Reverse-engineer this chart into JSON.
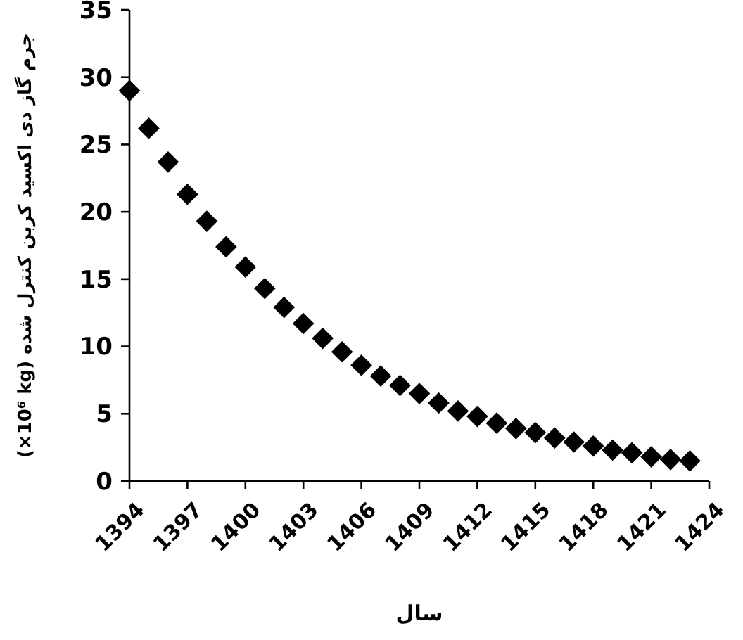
{
  "chart_data": {
    "type": "scatter",
    "xlabel": "سال",
    "ylabel": "جرم گاز دی اکسید کربن کنترل شده (×10⁶ kg)",
    "x": [
      1394,
      1395,
      1396,
      1397,
      1398,
      1399,
      1400,
      1401,
      1402,
      1403,
      1404,
      1405,
      1406,
      1407,
      1408,
      1409,
      1410,
      1411,
      1412,
      1413,
      1414,
      1415,
      1416,
      1417,
      1418,
      1419,
      1420,
      1421,
      1422,
      1423
    ],
    "series": [
      {
        "color": "#000000",
        "values": [
          29,
          26.2,
          23.7,
          21.3,
          19.3,
          17.4,
          15.9,
          14.3,
          12.9,
          11.7,
          10.6,
          9.6,
          8.6,
          7.8,
          7.1,
          6.5,
          5.8,
          5.2,
          4.8,
          4.3,
          3.9,
          3.6,
          3.2,
          2.9,
          2.6,
          2.3,
          2.1,
          1.8,
          1.6,
          1.5
        ]
      }
    ],
    "xlim": [
      1394,
      1424
    ],
    "xticks": [
      1394,
      1397,
      1400,
      1403,
      1406,
      1409,
      1412,
      1415,
      1418,
      1421,
      1424
    ],
    "ylim": [
      0,
      35
    ],
    "yticks": [
      0,
      5,
      10,
      15,
      20,
      25,
      30,
      35
    ],
    "grid": false,
    "marker": "diamond"
  }
}
